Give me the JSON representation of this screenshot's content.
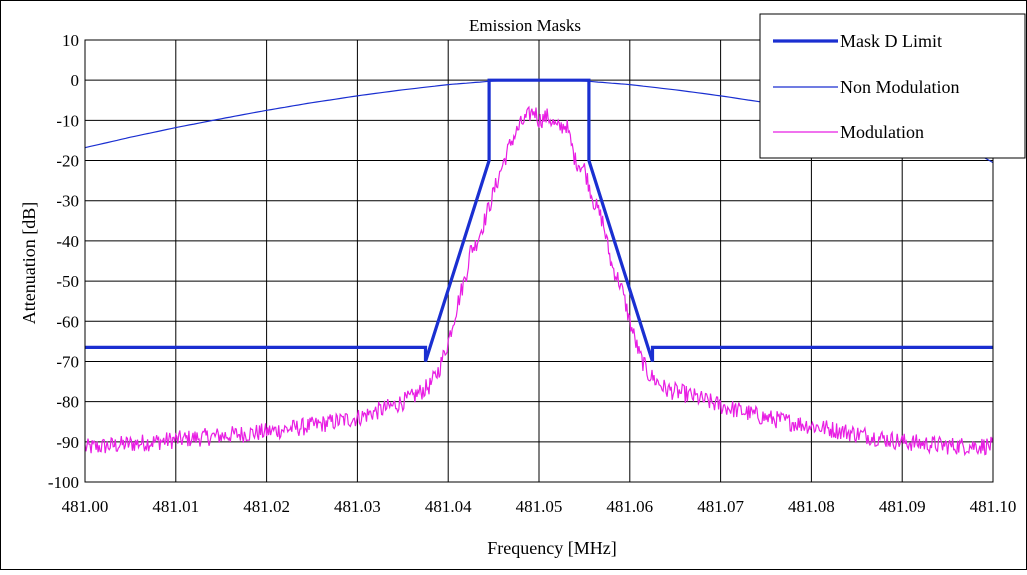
{
  "chart_data": {
    "type": "line",
    "title": "Emission Masks",
    "xlabel": "Frequency [MHz]",
    "ylabel": "Attenuation [dB]",
    "xlim": [
      481.0,
      481.1
    ],
    "ylim": [
      -100,
      10
    ],
    "x_ticks": [
      "481.00",
      "481.01",
      "481.02",
      "481.03",
      "481.04",
      "481.05",
      "481.06",
      "481.07",
      "481.08",
      "481.09",
      "481.10"
    ],
    "y_ticks": [
      "10",
      "0",
      "-10",
      "-20",
      "-30",
      "-40",
      "-50",
      "-60",
      "-70",
      "-80",
      "-90",
      "-100"
    ],
    "grid": true,
    "legend_position": "top-right",
    "series": [
      {
        "name": "Mask D Limit",
        "color": "#1a2fd1",
        "line_weight": "thick",
        "x": [
          481.0,
          481.0375,
          481.0375,
          481.0445,
          481.0445,
          481.0555,
          481.0555,
          481.0625,
          481.0625,
          481.1
        ],
        "y": [
          -66.5,
          -66.5,
          -70,
          -20,
          0,
          0,
          -20,
          -70,
          -66.5,
          -66.5
        ]
      },
      {
        "name": "Non Modulation",
        "color": "#1a2fd1",
        "line_weight": "thin",
        "x": [
          481.0,
          481.005,
          481.01,
          481.015,
          481.02,
          481.025,
          481.03,
          481.035,
          481.04,
          481.045,
          481.05,
          481.055,
          481.06,
          481.065,
          481.07,
          481.075,
          481.08,
          481.085,
          481.09,
          481.095,
          481.1
        ],
        "y": [
          -16.8,
          -14.2,
          -11.8,
          -9.6,
          -7.5,
          -5.6,
          -3.9,
          -2.4,
          -1.1,
          -0.2,
          0,
          -0.2,
          -1.1,
          -2.4,
          -3.9,
          -5.6,
          -7.5,
          -9.6,
          -11.8,
          -14.2,
          -20.5
        ]
      },
      {
        "name": "Modulation",
        "color": "#e81ee3",
        "line_weight": "thin",
        "x": [
          481.0,
          481.005,
          481.01,
          481.015,
          481.02,
          481.025,
          481.03,
          481.034,
          481.036,
          481.038,
          481.039,
          481.04,
          481.041,
          481.042,
          481.0425,
          481.043,
          481.044,
          481.045,
          481.046,
          481.047,
          481.048,
          481.049,
          481.0495,
          481.05,
          481.051,
          481.052,
          481.053,
          481.054,
          481.055,
          481.056,
          481.057,
          481.058,
          481.059,
          481.06,
          481.061,
          481.062,
          481.064,
          481.066,
          481.07,
          481.075,
          481.08,
          481.085,
          481.09,
          481.095,
          481.1
        ],
        "y": [
          -91.5,
          -90.5,
          -89.5,
          -88.5,
          -87.5,
          -86,
          -84,
          -81,
          -79,
          -76,
          -72,
          -65,
          -56,
          -48,
          -42,
          -41,
          -35,
          -28,
          -21,
          -15,
          -11,
          -8.5,
          -7.5,
          -10,
          -9,
          -12,
          -11,
          -20,
          -22,
          -30,
          -35,
          -46,
          -51,
          -60,
          -68,
          -73,
          -77,
          -78,
          -81,
          -84,
          -86,
          -88,
          -90,
          -91,
          -91
        ]
      }
    ]
  }
}
